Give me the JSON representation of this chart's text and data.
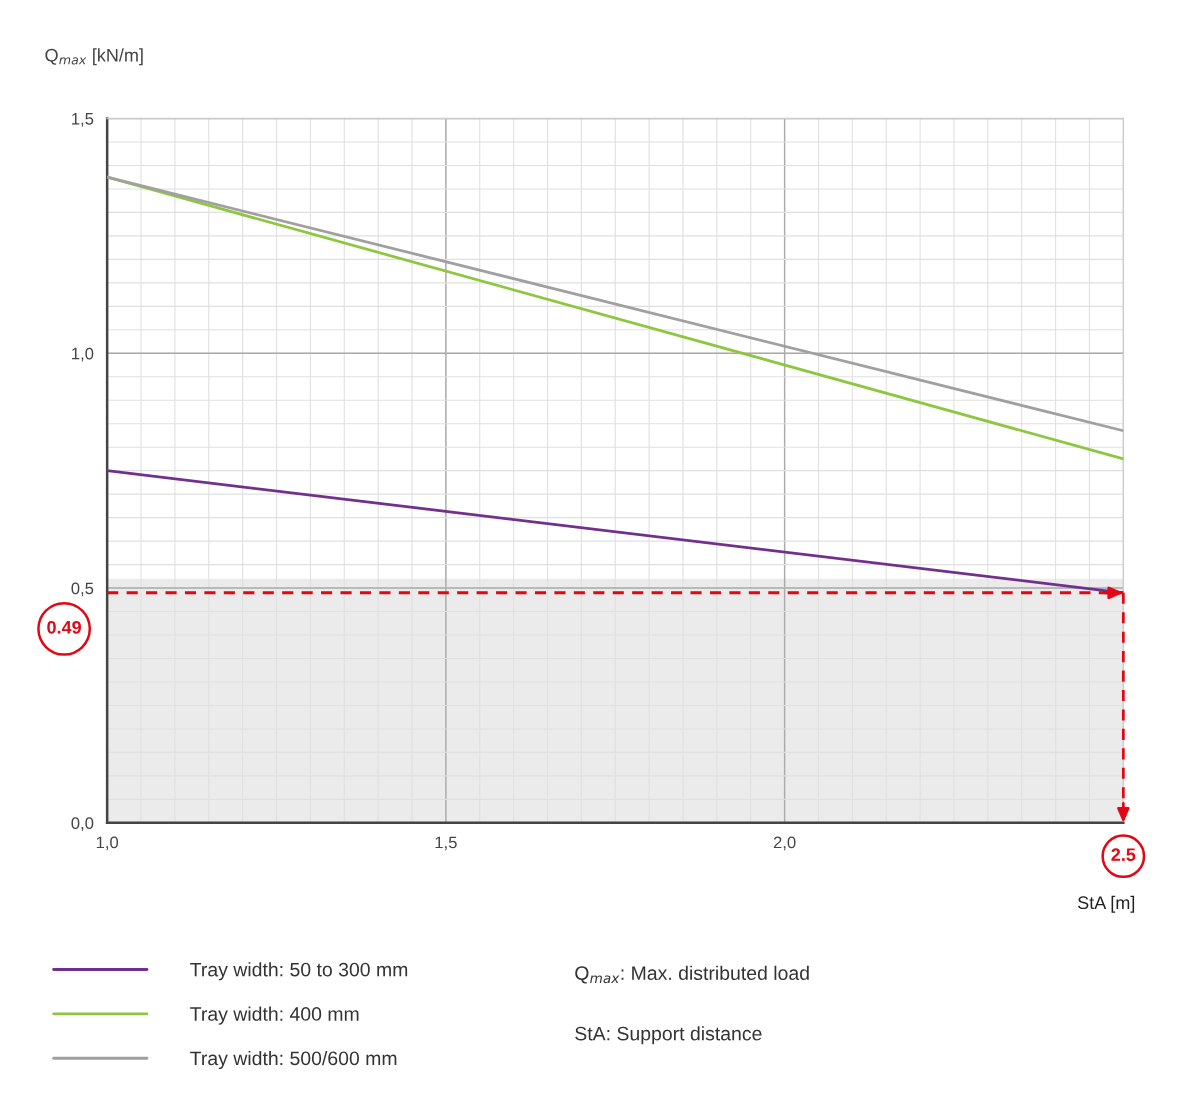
{
  "chart_data": {
    "type": "line",
    "xlabel": "StA [m]",
    "ylabel": "Q$_{max}$ [kN/m]",
    "x": [
      1.0,
      2.5
    ],
    "series": [
      {
        "name": "Tray width: 50 to 300 mm",
        "color": "#72308e",
        "values": [
          0.75,
          0.49
        ]
      },
      {
        "name": "Tray width: 400 mm",
        "color": "#8dc63f",
        "values": [
          1.375,
          0.775
        ]
      },
      {
        "name": "Tray width: 500/600 mm",
        "color": "#a0a0a0",
        "values": [
          1.375,
          0.835
        ]
      }
    ],
    "xlim": [
      1.0,
      2.5
    ],
    "ylim": [
      0.0,
      1.5
    ],
    "xticks": [
      {
        "value": 1.0,
        "label": "1,0"
      },
      {
        "value": 1.5,
        "label": "1,5"
      },
      {
        "value": 2.0,
        "label": "2,0"
      }
    ],
    "yticks": [
      {
        "value": 0.0,
        "label": "0,0"
      },
      {
        "value": 0.5,
        "label": "0,5"
      },
      {
        "value": 1.0,
        "label": "1,0"
      },
      {
        "value": 1.5,
        "label": "1,5"
      }
    ],
    "bands": [
      {
        "axis": "y",
        "from": 0.0,
        "to": 0.52,
        "color": "#ebebeb"
      }
    ],
    "ref_lines": [
      {
        "axis": "y",
        "value": 0.49,
        "label": "0.49",
        "color": "#e30613",
        "line_style": "dashed"
      },
      {
        "axis": "x",
        "value": 2.5,
        "label": "2.5",
        "color": "#e30613",
        "line_style": "dashed"
      }
    ],
    "annotations": [
      "Q$_{max}$: Max. distributed load",
      "StA: Support distance"
    ],
    "grid": true,
    "legend": "bottom left",
    "marker": "none",
    "line_style": "solid"
  }
}
